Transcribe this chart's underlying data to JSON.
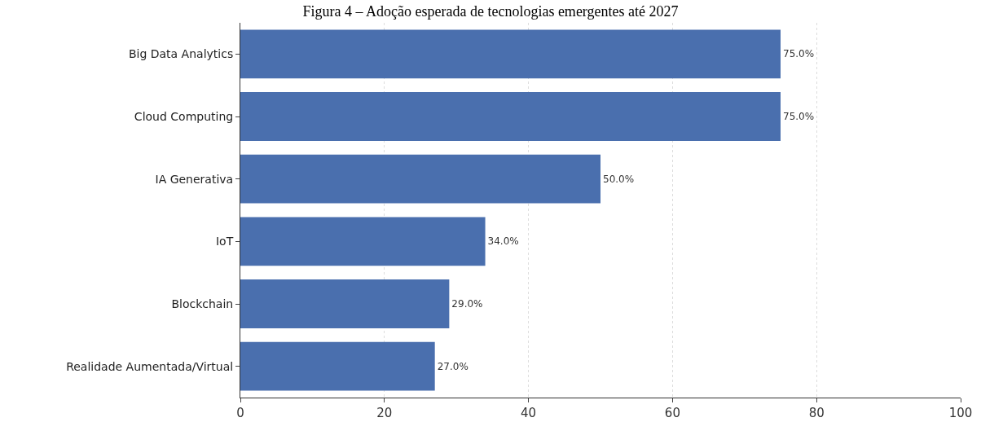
{
  "chart_data": {
    "type": "bar",
    "orientation": "horizontal",
    "title": "Figura 4 – Adoção esperada de tecnologias emergentes até 2027",
    "categories": [
      "Big Data Analytics",
      "Cloud Computing",
      "IA Generativa",
      "IoT",
      "Blockchain",
      "Realidade Aumentada/Virtual"
    ],
    "values": [
      75,
      75,
      50,
      34,
      29,
      27
    ],
    "value_labels": [
      "75.0%",
      "75.0%",
      "50.0%",
      "34.0%",
      "29.0%",
      "27.0%"
    ],
    "color": "#4a6fae",
    "xlim": [
      0,
      100
    ],
    "xticks": [
      0,
      20,
      40,
      60,
      80,
      100
    ],
    "grid": true
  }
}
